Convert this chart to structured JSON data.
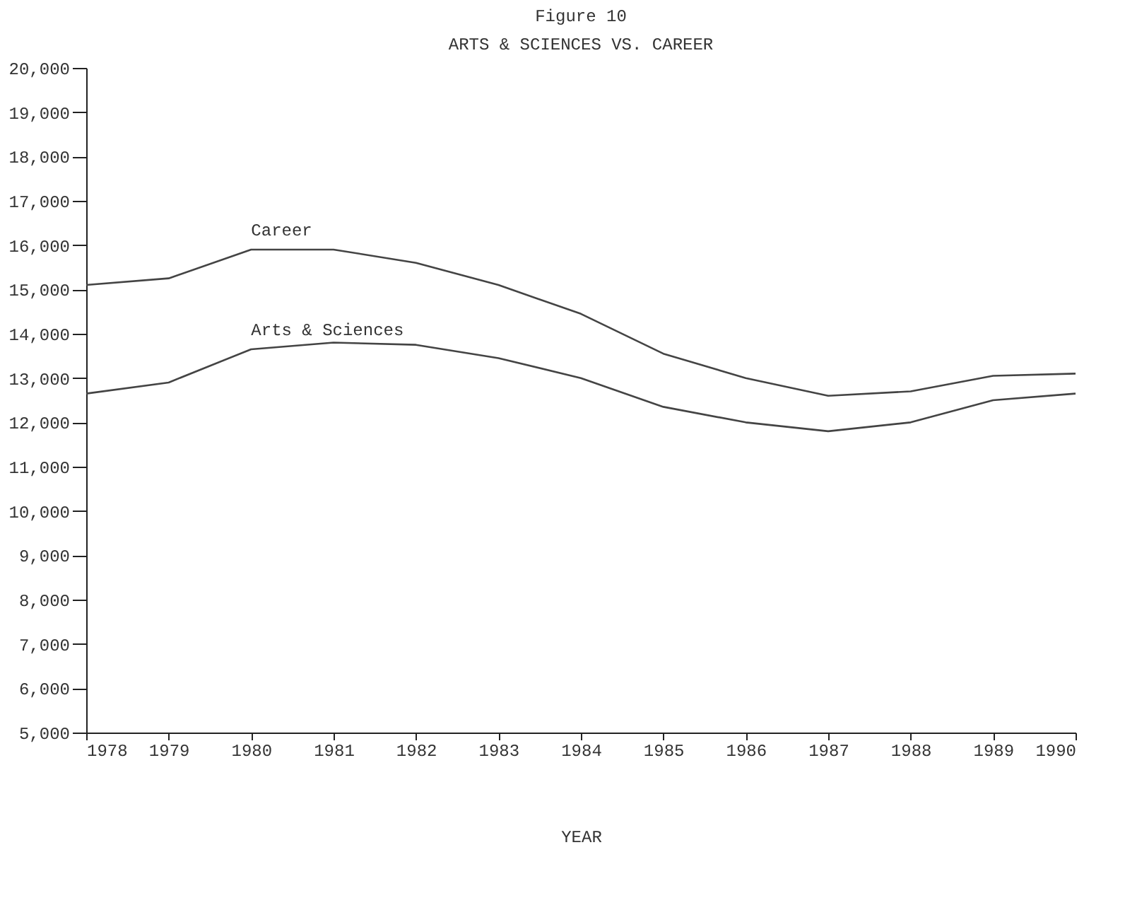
{
  "chart_data": {
    "type": "line",
    "title": "Figure 10",
    "subtitle": "ARTS & SCIENCES VS. CAREER",
    "xlabel": "YEAR",
    "x": [
      1978,
      1979,
      1980,
      1981,
      1982,
      1983,
      1984,
      1985,
      1986,
      1987,
      1988,
      1989,
      1990
    ],
    "series": [
      {
        "name": "Career",
        "color": "#444444",
        "values": [
          15100,
          15250,
          15900,
          15900,
          15600,
          15100,
          14450,
          13550,
          13000,
          12600,
          12700,
          13050,
          13100
        ]
      },
      {
        "name": "Arts & Sciences",
        "color": "#444444",
        "values": [
          12650,
          12900,
          13650,
          13800,
          13750,
          13450,
          13000,
          12350,
          12000,
          11800,
          12000,
          12500,
          12650
        ]
      }
    ],
    "xlim": [
      1978,
      1990
    ],
    "xticks": [
      1978,
      1979,
      1980,
      1981,
      1982,
      1983,
      1984,
      1985,
      1986,
      1987,
      1988,
      1989,
      1990
    ],
    "ylim": [
      5000,
      20000
    ],
    "yticks": [
      {
        "value": 5000,
        "label": "5,000"
      },
      {
        "value": 6000,
        "label": "6,000"
      },
      {
        "value": 7000,
        "label": "7,000"
      },
      {
        "value": 8000,
        "label": "8,000"
      },
      {
        "value": 9000,
        "label": "9,000"
      },
      {
        "value": 10000,
        "label": "10,000"
      },
      {
        "value": 11000,
        "label": "11,000"
      },
      {
        "value": 12000,
        "label": "12,000"
      },
      {
        "value": 13000,
        "label": "13,000"
      },
      {
        "value": 14000,
        "label": "14,000"
      },
      {
        "value": 15000,
        "label": "15,000"
      },
      {
        "value": 16000,
        "label": "16,000"
      },
      {
        "value": 17000,
        "label": "17,000"
      },
      {
        "value": 18000,
        "label": "18,000"
      },
      {
        "value": 19000,
        "label": "19,000"
      },
      {
        "value": 20000,
        "label": "20,000"
      }
    ],
    "grid": false,
    "legend": false,
    "marker": "none",
    "line_style": "solid"
  }
}
